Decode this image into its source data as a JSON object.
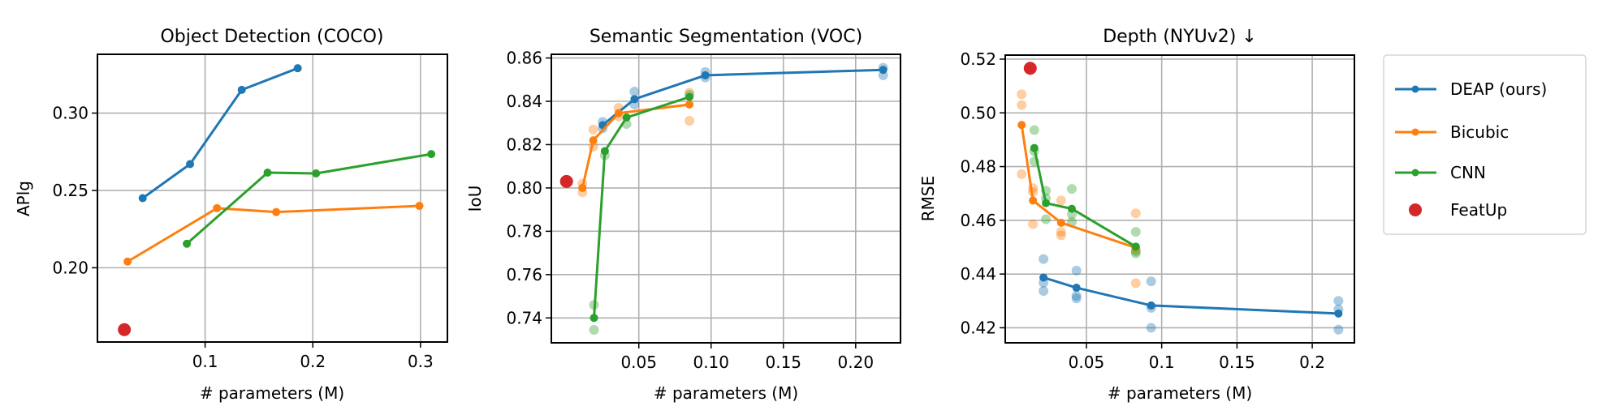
{
  "figure": {
    "legend": {
      "placement": "right",
      "entries": [
        {
          "label": "DEAP (ours)",
          "color": "#1f77b4",
          "style": "line-marker"
        },
        {
          "label": "Bicubic",
          "color": "#ff7f0e",
          "style": "line-marker"
        },
        {
          "label": "CNN",
          "color": "#2ca02c",
          "style": "line-marker"
        },
        {
          "label": "FeatUp",
          "color": "#d62728",
          "style": "marker"
        }
      ]
    }
  },
  "chart_data": [
    {
      "type": "line",
      "title": "Object Detection (COCO)",
      "xlabel": "# parameters (M)",
      "ylabel": "APlg",
      "xlim": [
        0.0,
        0.325
      ],
      "ylim": [
        0.152,
        0.338
      ],
      "xticks": [
        0.1,
        0.2,
        0.3
      ],
      "xtick_labels": [
        "0.1",
        "0.2",
        "0.3"
      ],
      "yticks": [
        0.2,
        0.25,
        0.3
      ],
      "ytick_labels": [
        "0.20",
        "0.25",
        "0.30"
      ],
      "grid": true,
      "series": [
        {
          "name": "DEAP (ours)",
          "color": "#1f77b4",
          "x": [
            0.042,
            0.086,
            0.134,
            0.186
          ],
          "y": [
            0.245,
            0.267,
            0.315,
            0.329
          ],
          "scatter": []
        },
        {
          "name": "Bicubic",
          "color": "#ff7f0e",
          "x": [
            0.028,
            0.111,
            0.166,
            0.299
          ],
          "y": [
            0.204,
            0.2385,
            0.236,
            0.24
          ],
          "scatter": []
        },
        {
          "name": "CNN",
          "color": "#2ca02c",
          "x": [
            0.083,
            0.158,
            0.203,
            0.31
          ],
          "y": [
            0.2155,
            0.2615,
            0.261,
            0.2735
          ],
          "scatter": []
        }
      ],
      "featup": {
        "name": "FeatUp",
        "color": "#d62728",
        "x": 0.025,
        "y": 0.16
      }
    },
    {
      "type": "line",
      "title": "Semantic Segmentation (VOC)",
      "xlabel": "# parameters (M)",
      "ylabel": "IoU",
      "xlim": [
        -0.0105,
        0.231
      ],
      "ylim": [
        0.7285,
        0.8617
      ],
      "xticks": [
        0.05,
        0.1,
        0.15,
        0.2
      ],
      "xtick_labels": [
        "0.05",
        "0.10",
        "0.15",
        "0.20"
      ],
      "yticks": [
        0.74,
        0.76,
        0.78,
        0.8,
        0.82,
        0.84,
        0.86
      ],
      "ytick_labels": [
        "0.74",
        "0.76",
        "0.78",
        "0.80",
        "0.82",
        "0.84",
        "0.86"
      ],
      "grid": true,
      "series": [
        {
          "name": "DEAP (ours)",
          "color": "#1f77b4",
          "x": [
            0.025,
            0.047,
            0.096,
            0.219
          ],
          "y": [
            0.829,
            0.841,
            0.852,
            0.8545
          ],
          "scatter": [
            [
              0.025,
              0.8275
            ],
            [
              0.025,
              0.8305
            ],
            [
              0.047,
              0.8445
            ],
            [
              0.047,
              0.8385
            ],
            [
              0.096,
              0.8535
            ],
            [
              0.096,
              0.851
            ],
            [
              0.219,
              0.8555
            ],
            [
              0.219,
              0.852
            ]
          ]
        },
        {
          "name": "Bicubic",
          "color": "#ff7f0e",
          "x": [
            0.011,
            0.0185,
            0.036,
            0.085
          ],
          "y": [
            0.8,
            0.822,
            0.8345,
            0.8385
          ],
          "scatter": [
            [
              0.011,
              0.802
            ],
            [
              0.011,
              0.798
            ],
            [
              0.0185,
              0.827
            ],
            [
              0.0185,
              0.819
            ],
            [
              0.036,
              0.837
            ],
            [
              0.036,
              0.833
            ],
            [
              0.085,
              0.844
            ],
            [
              0.085,
              0.831
            ]
          ]
        },
        {
          "name": "CNN",
          "color": "#2ca02c",
          "x": [
            0.019,
            0.0265,
            0.0415,
            0.085
          ],
          "y": [
            0.74,
            0.817,
            0.8325,
            0.842
          ],
          "scatter": [
            [
              0.019,
              0.746
            ],
            [
              0.019,
              0.7345
            ],
            [
              0.0265,
              0.815
            ],
            [
              0.0415,
              0.8295
            ],
            [
              0.085,
              0.843
            ]
          ]
        }
      ],
      "featup": {
        "name": "FeatUp",
        "color": "#d62728",
        "x": 0.0,
        "y": 0.803
      }
    },
    {
      "type": "line",
      "title": "Depth (NYUv2) ↓",
      "xlabel": "# parameters (M)",
      "ylabel": "RMSE",
      "xlim": [
        -0.0039,
        0.228
      ],
      "ylim": [
        0.4144,
        0.5215
      ],
      "xticks": [
        0.05,
        0.1,
        0.15,
        0.2
      ],
      "xtick_labels": [
        "0.05",
        "0.1",
        "0.15",
        "0.2"
      ],
      "yticks": [
        0.42,
        0.44,
        0.46,
        0.48,
        0.5,
        0.52
      ],
      "ytick_labels": [
        "0.42",
        "0.44",
        "0.46",
        "0.48",
        "0.50",
        "0.52"
      ],
      "grid": true,
      "series": [
        {
          "name": "DEAP (ours)",
          "color": "#1f77b4",
          "x": [
            0.0215,
            0.0434,
            0.093,
            0.2174
          ],
          "y": [
            0.4387,
            0.4349,
            0.4283,
            0.4253
          ],
          "scatter": [
            [
              0.0215,
              0.4456
            ],
            [
              0.0215,
              0.4368
            ],
            [
              0.0215,
              0.4337
            ],
            [
              0.0434,
              0.4413
            ],
            [
              0.0434,
              0.4319
            ],
            [
              0.0434,
              0.4309
            ],
            [
              0.093,
              0.4373
            ],
            [
              0.093,
              0.4274
            ],
            [
              0.093,
              0.42
            ],
            [
              0.2174,
              0.43
            ],
            [
              0.2174,
              0.4269
            ],
            [
              0.2174,
              0.4193
            ]
          ]
        },
        {
          "name": "Bicubic",
          "color": "#ff7f0e",
          "x": [
            0.007,
            0.0145,
            0.0332,
            0.0828
          ],
          "y": [
            0.4955,
            0.4674,
            0.4591,
            0.4498
          ],
          "scatter": [
            [
              0.007,
              0.5069
            ],
            [
              0.007,
              0.5029
            ],
            [
              0.007,
              0.4772
            ],
            [
              0.0145,
              0.472
            ],
            [
              0.0145,
              0.4706
            ],
            [
              0.0145,
              0.4586
            ],
            [
              0.0332,
              0.4674
            ],
            [
              0.0332,
              0.4557
            ],
            [
              0.0332,
              0.4544
            ],
            [
              0.0828,
              0.4626
            ],
            [
              0.0828,
              0.4491
            ],
            [
              0.0828,
              0.4366
            ]
          ]
        },
        {
          "name": "CNN",
          "color": "#2ca02c",
          "x": [
            0.0154,
            0.0231,
            0.0403,
            0.0828
          ],
          "y": [
            0.4869,
            0.4664,
            0.4643,
            0.4502
          ],
          "scatter": [
            [
              0.0154,
              0.4936
            ],
            [
              0.0154,
              0.4857
            ],
            [
              0.0154,
              0.4819
            ],
            [
              0.0231,
              0.471
            ],
            [
              0.0231,
              0.4682
            ],
            [
              0.0231,
              0.4604
            ],
            [
              0.0403,
              0.4717
            ],
            [
              0.0403,
              0.4622
            ],
            [
              0.0403,
              0.4594
            ],
            [
              0.0828,
              0.4557
            ],
            [
              0.0828,
              0.4484
            ],
            [
              0.0828,
              0.4477
            ]
          ]
        }
      ],
      "featup": {
        "name": "FeatUp",
        "color": "#d62728",
        "x": 0.0127,
        "y": 0.5166
      }
    }
  ]
}
